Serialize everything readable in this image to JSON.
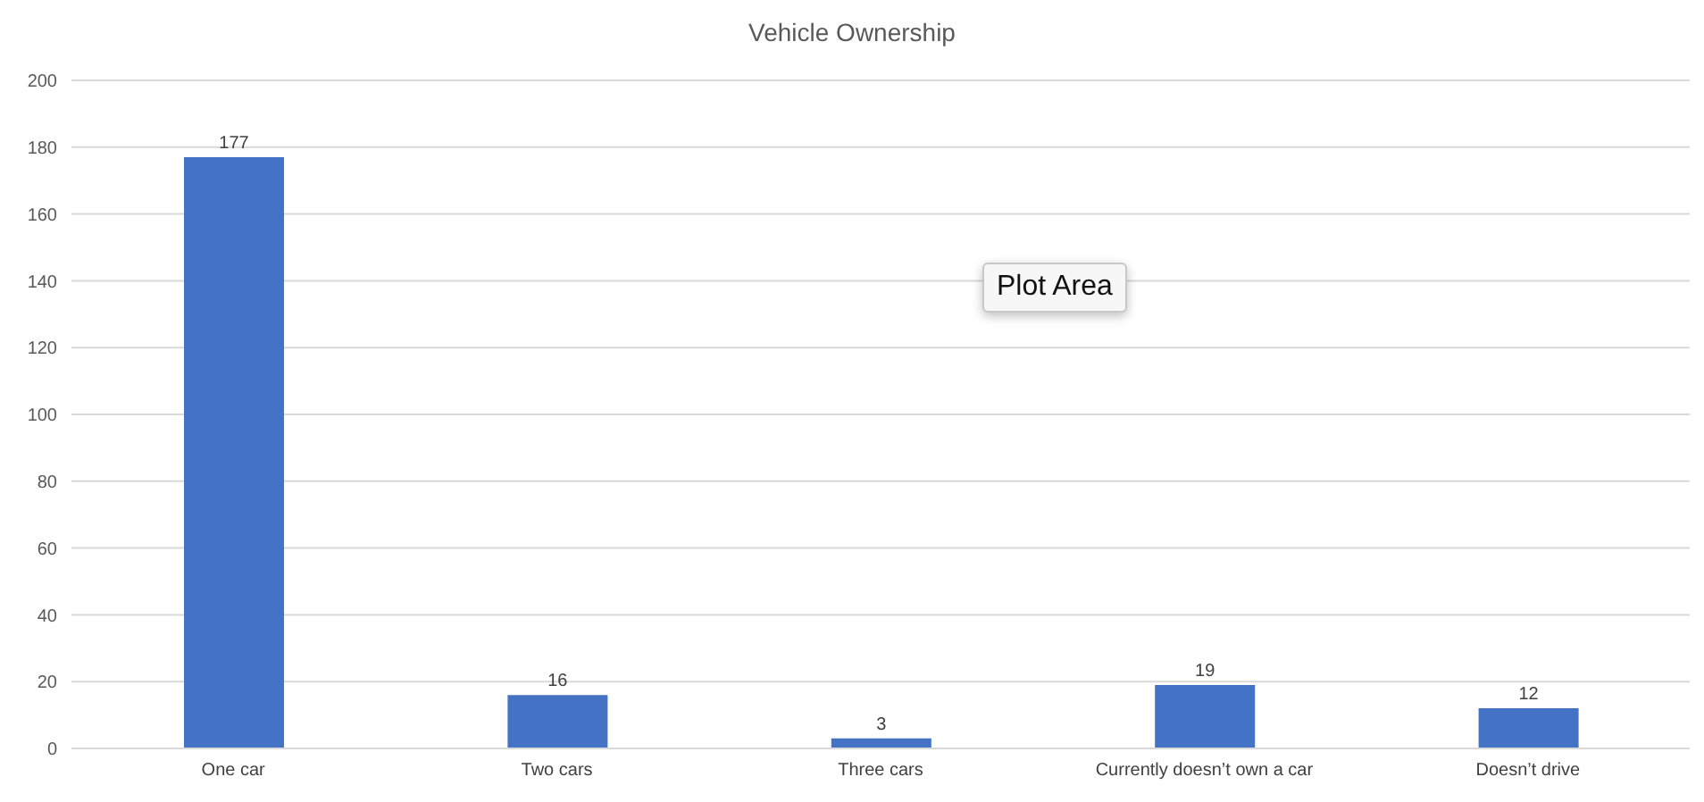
{
  "chart_data": {
    "type": "bar",
    "title": "Vehicle Ownership",
    "categories": [
      "One car",
      "Two cars",
      "Three cars",
      "Currently doesn’t own a car",
      "Doesn’t drive"
    ],
    "values": [
      177,
      16,
      3,
      19,
      12
    ],
    "color": "#4472c4",
    "ylim": [
      0,
      200
    ],
    "yticks": [
      0,
      20,
      40,
      60,
      80,
      100,
      120,
      140,
      160,
      180,
      200
    ],
    "grid": "y",
    "data_labels": true,
    "annotations": [
      "Plot Area"
    ]
  }
}
